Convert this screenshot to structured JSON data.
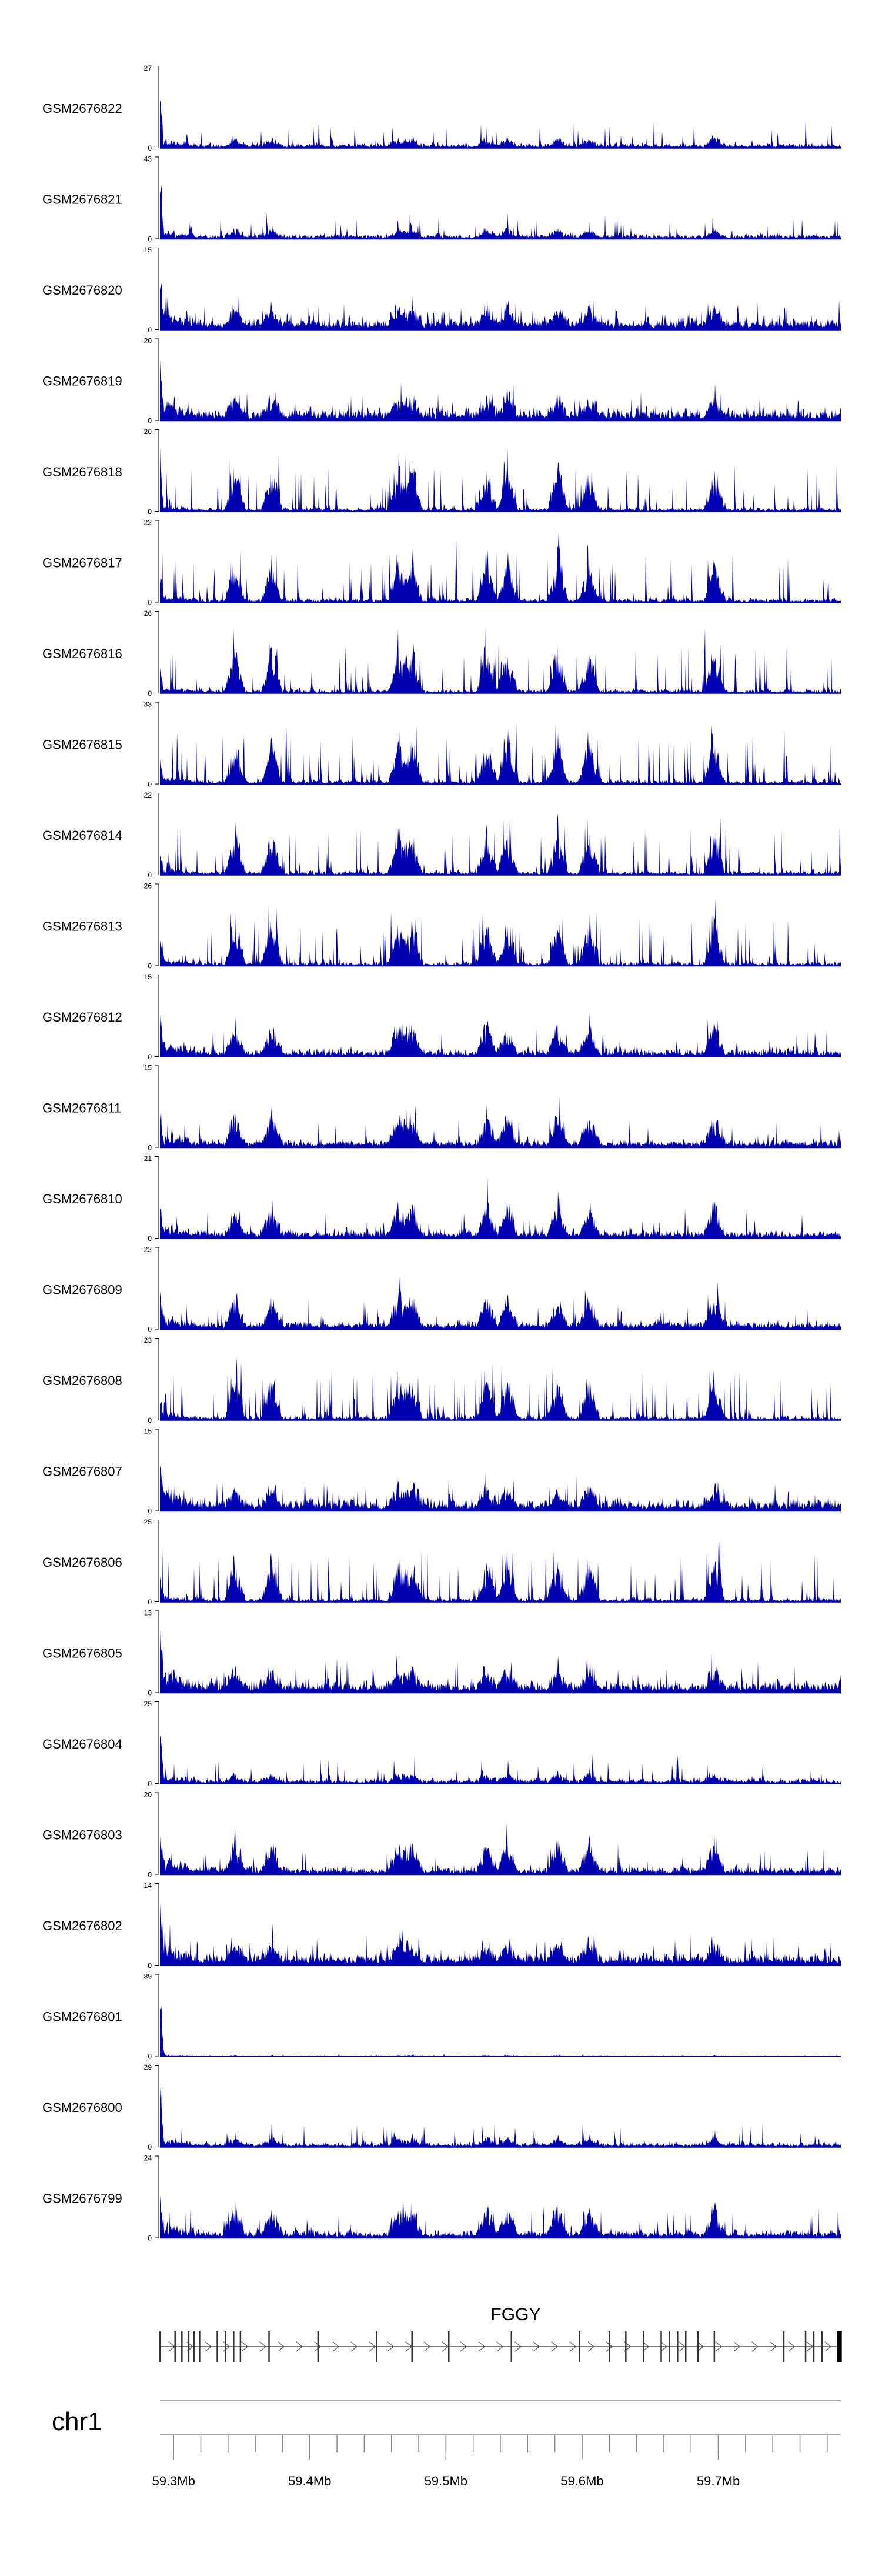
{
  "chart_data": {
    "type": "area",
    "color": "#0000b3",
    "tracks": [
      {
        "name": "GSM2676822",
        "ymax": 27,
        "ymin": 0,
        "profile": "sparse",
        "seed": 11
      },
      {
        "name": "GSM2676821",
        "ymax": 43,
        "ymin": 0,
        "profile": "sparse",
        "seed": 12
      },
      {
        "name": "GSM2676820",
        "ymax": 15,
        "ymin": 0,
        "profile": "dense",
        "seed": 13
      },
      {
        "name": "GSM2676819",
        "ymax": 20,
        "ymin": 0,
        "profile": "dense",
        "seed": 14
      },
      {
        "name": "GSM2676818",
        "ymax": 20,
        "ymin": 0,
        "profile": "spiky",
        "seed": 15
      },
      {
        "name": "GSM2676817",
        "ymax": 22,
        "ymin": 0,
        "profile": "spiky",
        "seed": 16
      },
      {
        "name": "GSM2676816",
        "ymax": 26,
        "ymin": 0,
        "profile": "spiky",
        "seed": 17
      },
      {
        "name": "GSM2676815",
        "ymax": 33,
        "ymin": 0,
        "profile": "spiky",
        "seed": 18
      },
      {
        "name": "GSM2676814",
        "ymax": 22,
        "ymin": 0,
        "profile": "spiky",
        "seed": 19
      },
      {
        "name": "GSM2676813",
        "ymax": 26,
        "ymin": 0,
        "profile": "spiky",
        "seed": 20
      },
      {
        "name": "GSM2676812",
        "ymax": 15,
        "ymin": 0,
        "profile": "medium",
        "seed": 21
      },
      {
        "name": "GSM2676811",
        "ymax": 15,
        "ymin": 0,
        "profile": "medium",
        "seed": 22
      },
      {
        "name": "GSM2676810",
        "ymax": 21,
        "ymin": 0,
        "profile": "medium",
        "seed": 23
      },
      {
        "name": "GSM2676809",
        "ymax": 22,
        "ymin": 0,
        "profile": "medium",
        "seed": 24
      },
      {
        "name": "GSM2676808",
        "ymax": 23,
        "ymin": 0,
        "profile": "spiky",
        "seed": 25
      },
      {
        "name": "GSM2676807",
        "ymax": 15,
        "ymin": 0,
        "profile": "dense",
        "seed": 26
      },
      {
        "name": "GSM2676806",
        "ymax": 25,
        "ymin": 0,
        "profile": "spiky",
        "seed": 27
      },
      {
        "name": "GSM2676805",
        "ymax": 13,
        "ymin": 0,
        "profile": "dense",
        "seed": 28
      },
      {
        "name": "GSM2676804",
        "ymax": 25,
        "ymin": 0,
        "profile": "sparse",
        "seed": 29
      },
      {
        "name": "GSM2676803",
        "ymax": 20,
        "ymin": 0,
        "profile": "medium",
        "seed": 30
      },
      {
        "name": "GSM2676802",
        "ymax": 14,
        "ymin": 0,
        "profile": "dense",
        "seed": 31
      },
      {
        "name": "GSM2676801",
        "ymax": 89,
        "ymin": 0,
        "profile": "flat",
        "seed": 32
      },
      {
        "name": "GSM2676800",
        "ymax": 29,
        "ymin": 0,
        "profile": "sparse",
        "seed": 33
      },
      {
        "name": "GSM2676799",
        "ymax": 24,
        "ymin": 0,
        "profile": "medium",
        "seed": 34
      }
    ],
    "region": {
      "chrom": "chr1",
      "start_mb": 59.29,
      "end_mb": 59.79
    },
    "hotspots_mb": [
      59.345,
      59.372,
      59.465,
      59.475,
      59.53,
      59.545,
      59.582,
      59.605,
      59.697
    ],
    "gene": {
      "name": "FGGY",
      "strand": "+",
      "start_mb": 59.29,
      "end_mb": 59.79,
      "exons_mb": [
        59.29,
        59.301,
        59.306,
        59.311,
        59.315,
        59.319,
        59.332,
        59.338,
        59.344,
        59.349,
        59.37,
        59.406,
        59.449,
        59.475,
        59.502,
        59.548,
        59.598,
        59.62,
        59.632,
        59.645,
        59.658,
        59.664,
        59.67,
        59.676,
        59.685,
        59.697,
        59.748,
        59.764,
        59.77,
        59.776,
        59.789
      ]
    },
    "xaxis": {
      "ticks": [
        {
          "mb": 59.3,
          "label": "59.3Mb"
        },
        {
          "mb": 59.4,
          "label": "59.4Mb"
        },
        {
          "mb": 59.5,
          "label": "59.5Mb"
        },
        {
          "mb": 59.6,
          "label": "59.6Mb"
        },
        {
          "mb": 59.7,
          "label": "59.7Mb"
        }
      ],
      "minor_step_mb": 0.02
    }
  }
}
